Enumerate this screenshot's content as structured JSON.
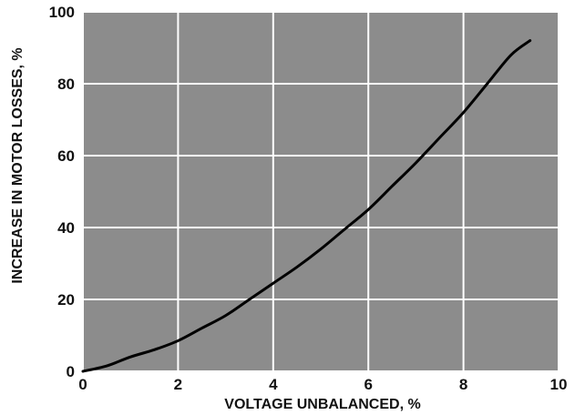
{
  "chart_data": {
    "type": "line",
    "title": "",
    "xlabel": "VOLTAGE UNBALANCED, %",
    "ylabel": "INCREASE IN MOTOR LOSSES, %",
    "xlim": [
      0,
      10
    ],
    "ylim": [
      0,
      100
    ],
    "xticks": [
      "0",
      "2",
      "4",
      "6",
      "8",
      "10"
    ],
    "yticks": [
      "0",
      "20",
      "40",
      "60",
      "80",
      "100"
    ],
    "grid": true,
    "series": [
      {
        "x": [
          0,
          0.5,
          1,
          1.5,
          2,
          2.5,
          3,
          3.5,
          4,
          4.5,
          5,
          5.5,
          6,
          6.5,
          7,
          7.5,
          8,
          8.5,
          9,
          9.4
        ],
        "y": [
          0,
          1.5,
          4,
          6,
          8.5,
          12,
          15.5,
          20,
          24.5,
          29,
          34,
          39.5,
          45,
          51.5,
          58,
          65,
          72,
          80,
          88,
          92
        ]
      }
    ],
    "colors": {
      "plot_background": "#8c8c8c",
      "grid": "#ffffff",
      "line": "#000000"
    }
  }
}
